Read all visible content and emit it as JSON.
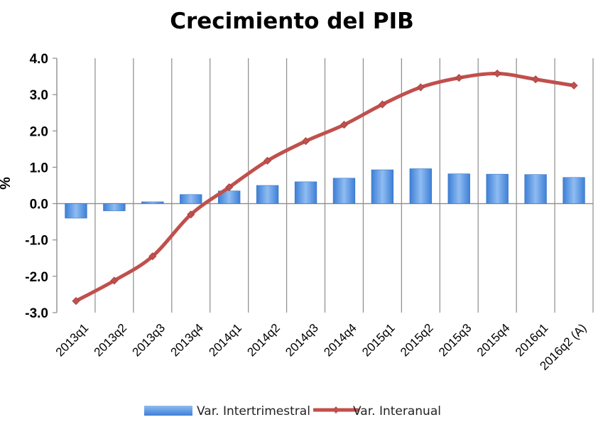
{
  "chart_data": {
    "type": "bar+line",
    "title": "Crecimiento del PIB",
    "ylabel": "%",
    "xlabel": "",
    "ylim": [
      -3.0,
      4.0
    ],
    "yticks": [
      "4.0",
      "3.0",
      "2.0",
      "1.0",
      "0.0",
      "-1.0",
      "-2.0",
      "-3.0"
    ],
    "ytick_values": [
      4,
      3,
      2,
      1,
      0,
      -1,
      -2,
      -3
    ],
    "grid": "vertical",
    "legend_position": "bottom",
    "categories": [
      "2013q1",
      "2013q2",
      "2013q3",
      "2013q4",
      "2014q1",
      "2014q2",
      "2014q3",
      "2014q4",
      "2015q1",
      "2015q2",
      "2015q3",
      "2015q4",
      "2016q1",
      "2016q2 (A)"
    ],
    "series": [
      {
        "name": "Var. Intertrimestral",
        "type": "bar",
        "color": "#4f8fe0",
        "values": [
          -0.4,
          -0.2,
          0.05,
          0.25,
          0.35,
          0.5,
          0.6,
          0.7,
          0.93,
          0.96,
          0.82,
          0.81,
          0.8,
          0.72
        ]
      },
      {
        "name": "Var. Interanual",
        "type": "line",
        "color": "#c0504d",
        "values": [
          -2.68,
          -2.12,
          -1.45,
          -0.3,
          0.45,
          1.18,
          1.72,
          2.17,
          2.73,
          3.2,
          3.46,
          3.58,
          3.42,
          3.25
        ]
      }
    ]
  }
}
